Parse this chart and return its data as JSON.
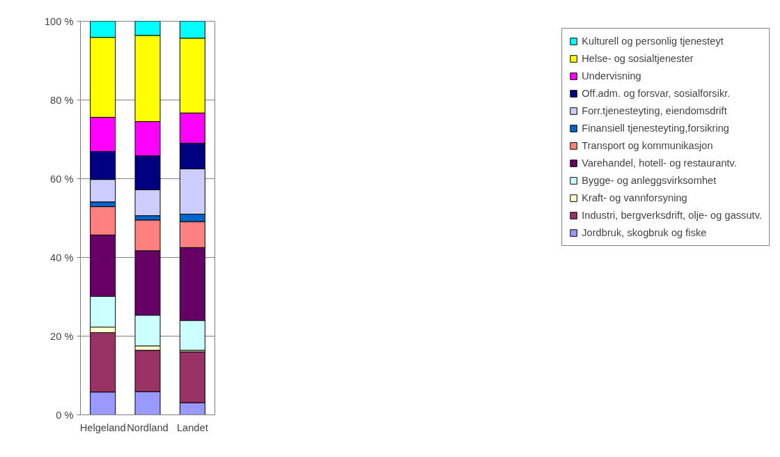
{
  "chart_data": {
    "type": "bar",
    "stacked": true,
    "categories": [
      "Helgeland",
      "Nordland",
      "Landet"
    ],
    "ylim": [
      0,
      100
    ],
    "yticks": [
      {
        "value": 0,
        "label": "0 %"
      },
      {
        "value": 20,
        "label": "20 %"
      },
      {
        "value": 40,
        "label": "40 %"
      },
      {
        "value": 60,
        "label": "60 %"
      },
      {
        "value": 80,
        "label": "80 %"
      },
      {
        "value": 100,
        "label": "100 %"
      }
    ],
    "grid": "y",
    "legend": "right",
    "series": [
      {
        "name": "Jordbruk, skogbruk og fiske",
        "color": "#9999ff",
        "values": [
          5.8,
          5.9,
          3.1
        ]
      },
      {
        "name": "Industri, bergverksdrift, olje- og gassutv.",
        "color": "#993366",
        "values": [
          15.1,
          10.5,
          12.9
        ]
      },
      {
        "name": "Kraft- og vannforsyning",
        "color": "#ffffcc",
        "values": [
          1.4,
          1.1,
          0.4
        ]
      },
      {
        "name": "Bygge- og anleggsvirksomhet",
        "color": "#ccffff",
        "values": [
          7.8,
          7.8,
          7.6
        ]
      },
      {
        "name": "Varehandel, hotell- og restaurantv.",
        "color": "#660066",
        "values": [
          15.6,
          16.4,
          18.5
        ]
      },
      {
        "name": "Transport og kommunikasjon",
        "color": "#ff8080",
        "values": [
          7.2,
          7.8,
          6.6
        ]
      },
      {
        "name": "Finansiell tjenesteyting,forsikring",
        "color": "#0066cc",
        "values": [
          1.2,
          1.1,
          1.9
        ]
      },
      {
        "name": "Forr.tjenesteyting, eiendomsdrift",
        "color": "#ccccff",
        "values": [
          5.7,
          6.6,
          11.5
        ]
      },
      {
        "name": "Off.adm. og forsvar, sosialforsikr.",
        "color": "#000080",
        "values": [
          7.1,
          8.6,
          6.5
        ]
      },
      {
        "name": "Undervisning",
        "color": "#ff00ff",
        "values": [
          8.7,
          8.7,
          7.7
        ]
      },
      {
        "name": "Helse- og sosialtjenester",
        "color": "#ffff00",
        "values": [
          20.3,
          21.9,
          19.0
        ]
      },
      {
        "name": "Kulturell og personlig tjenesteyt",
        "color": "#00ffff",
        "values": [
          4.1,
          3.6,
          4.3
        ]
      }
    ]
  }
}
